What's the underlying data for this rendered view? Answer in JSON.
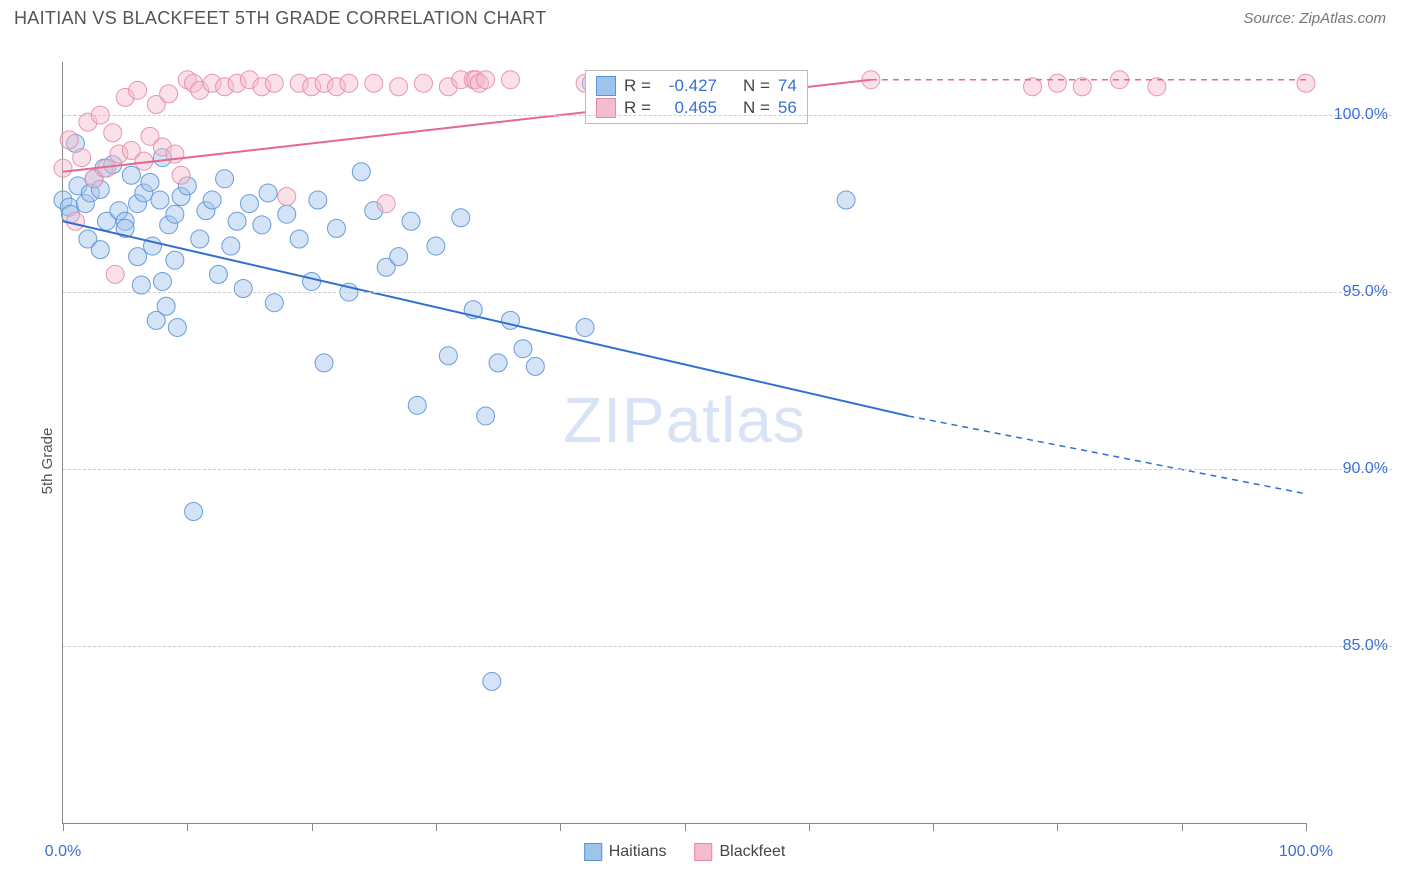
{
  "header": {
    "title": "HAITIAN VS BLACKFEET 5TH GRADE CORRELATION CHART",
    "source": "Source: ZipAtlas.com"
  },
  "chart": {
    "type": "scatter",
    "y_axis_label": "5th Grade",
    "xlim": [
      0,
      100
    ],
    "ylim": [
      80,
      101.5
    ],
    "x_ticks": [
      0,
      10,
      20,
      30,
      40,
      50,
      60,
      70,
      80,
      90,
      100
    ],
    "x_tick_labels": {
      "0": "0.0%",
      "100": "100.0%"
    },
    "y_ticks": [
      85,
      90,
      95,
      100
    ],
    "y_tick_labels": {
      "85": "85.0%",
      "90": "90.0%",
      "95": "95.0%",
      "100": "100.0%"
    },
    "background_color": "#ffffff",
    "grid_color": "#cccccc",
    "axis_color": "#888888",
    "tick_label_color": "#3b6fd4",
    "tick_label_fontsize": 16,
    "axis_label_fontsize": 15,
    "marker_radius": 9,
    "marker_opacity": 0.45,
    "marker_stroke_opacity": 0.9,
    "line_width": 2,
    "series": [
      {
        "name": "Haitians",
        "color_fill": "#9fc4ec",
        "color_stroke": "#5a94d8",
        "line_color": "#2f6fd0",
        "points": [
          [
            0,
            97.6
          ],
          [
            0.5,
            97.4
          ],
          [
            0.6,
            97.2
          ],
          [
            1,
            99.2
          ],
          [
            1.2,
            98.0
          ],
          [
            1.8,
            97.5
          ],
          [
            2,
            96.5
          ],
          [
            2.2,
            97.8
          ],
          [
            2.5,
            98.2
          ],
          [
            3,
            97.9
          ],
          [
            3,
            96.2
          ],
          [
            3.3,
            98.5
          ],
          [
            3.5,
            97.0
          ],
          [
            4,
            98.6
          ],
          [
            4.5,
            97.3
          ],
          [
            5,
            97.0
          ],
          [
            5,
            96.8
          ],
          [
            5.5,
            98.3
          ],
          [
            6,
            97.5
          ],
          [
            6,
            96.0
          ],
          [
            6.3,
            95.2
          ],
          [
            6.5,
            97.8
          ],
          [
            7,
            98.1
          ],
          [
            7.2,
            96.3
          ],
          [
            7.5,
            94.2
          ],
          [
            7.8,
            97.6
          ],
          [
            8,
            98.8
          ],
          [
            8,
            95.3
          ],
          [
            8.3,
            94.6
          ],
          [
            8.5,
            96.9
          ],
          [
            9,
            97.2
          ],
          [
            9,
            95.9
          ],
          [
            9.2,
            94.0
          ],
          [
            9.5,
            97.7
          ],
          [
            10,
            98.0
          ],
          [
            10.5,
            88.8
          ],
          [
            11,
            96.5
          ],
          [
            11.5,
            97.3
          ],
          [
            12,
            97.6
          ],
          [
            12.5,
            95.5
          ],
          [
            13,
            98.2
          ],
          [
            13.5,
            96.3
          ],
          [
            14,
            97.0
          ],
          [
            14.5,
            95.1
          ],
          [
            15,
            97.5
          ],
          [
            16,
            96.9
          ],
          [
            16.5,
            97.8
          ],
          [
            17,
            94.7
          ],
          [
            18,
            97.2
          ],
          [
            19,
            96.5
          ],
          [
            20,
            95.3
          ],
          [
            20.5,
            97.6
          ],
          [
            21,
            93.0
          ],
          [
            22,
            96.8
          ],
          [
            23,
            95.0
          ],
          [
            24,
            98.4
          ],
          [
            25,
            97.3
          ],
          [
            26,
            95.7
          ],
          [
            27,
            96.0
          ],
          [
            28,
            97.0
          ],
          [
            28.5,
            91.8
          ],
          [
            30,
            96.3
          ],
          [
            31,
            93.2
          ],
          [
            32,
            97.1
          ],
          [
            33,
            94.5
          ],
          [
            34,
            91.5
          ],
          [
            34.5,
            84.0
          ],
          [
            35,
            93.0
          ],
          [
            36,
            94.2
          ],
          [
            37,
            93.4
          ],
          [
            38,
            92.9
          ],
          [
            42,
            94.0
          ],
          [
            42.5,
            100.9
          ],
          [
            63,
            97.6
          ]
        ],
        "regression": {
          "x0": 0,
          "y0": 97.0,
          "x1": 68,
          "y1": 91.5,
          "x2": 100,
          "y2": 89.3,
          "dashed_from": 68
        }
      },
      {
        "name": "Blackfeet",
        "color_fill": "#f4bccd",
        "color_stroke": "#e789a9",
        "line_color": "#e56894",
        "points": [
          [
            0,
            98.5
          ],
          [
            0.5,
            99.3
          ],
          [
            1,
            97.0
          ],
          [
            1.5,
            98.8
          ],
          [
            2,
            99.8
          ],
          [
            2.5,
            98.2
          ],
          [
            3,
            100.0
          ],
          [
            3.5,
            98.5
          ],
          [
            4,
            99.5
          ],
          [
            4.2,
            95.5
          ],
          [
            4.5,
            98.9
          ],
          [
            5,
            100.5
          ],
          [
            5.5,
            99.0
          ],
          [
            6,
            100.7
          ],
          [
            6.5,
            98.7
          ],
          [
            7,
            99.4
          ],
          [
            7.5,
            100.3
          ],
          [
            8,
            99.1
          ],
          [
            8.5,
            100.6
          ],
          [
            9,
            98.9
          ],
          [
            9.5,
            98.3
          ],
          [
            10,
            101.0
          ],
          [
            10.5,
            100.9
          ],
          [
            11,
            100.7
          ],
          [
            12,
            100.9
          ],
          [
            13,
            100.8
          ],
          [
            14,
            100.9
          ],
          [
            15,
            101.0
          ],
          [
            16,
            100.8
          ],
          [
            17,
            100.9
          ],
          [
            18,
            97.7
          ],
          [
            19,
            100.9
          ],
          [
            20,
            100.8
          ],
          [
            21,
            100.9
          ],
          [
            22,
            100.8
          ],
          [
            23,
            100.9
          ],
          [
            25,
            100.9
          ],
          [
            26,
            97.5
          ],
          [
            27,
            100.8
          ],
          [
            29,
            100.9
          ],
          [
            31,
            100.8
          ],
          [
            32,
            101.0
          ],
          [
            33,
            101.0
          ],
          [
            33.2,
            101.0
          ],
          [
            33.5,
            100.9
          ],
          [
            34,
            101.0
          ],
          [
            36,
            101.0
          ],
          [
            42,
            100.9
          ],
          [
            50,
            100.8
          ],
          [
            65,
            101.0
          ],
          [
            78,
            100.8
          ],
          [
            80,
            100.9
          ],
          [
            82,
            100.8
          ],
          [
            85,
            101.0
          ],
          [
            88,
            100.8
          ],
          [
            100,
            100.9
          ]
        ],
        "regression": {
          "x0": 0,
          "y0": 98.4,
          "x1": 65,
          "y1": 101.0,
          "x2": 100,
          "y2": 101.0,
          "dashed_from": 65
        }
      }
    ],
    "stats_box": {
      "left_pct": 42,
      "top_pct": 1,
      "rows": [
        {
          "swatch_fill": "#9fc4ec",
          "swatch_stroke": "#5a94d8",
          "r_label": "R =",
          "r_val": "-0.427",
          "n_label": "N =",
          "n_val": "74"
        },
        {
          "swatch_fill": "#f4bccd",
          "swatch_stroke": "#e789a9",
          "r_label": "R =",
          "r_val": " 0.465",
          "n_label": "N =",
          "n_val": "56"
        }
      ]
    },
    "legend": [
      {
        "swatch_fill": "#9fc4ec",
        "swatch_stroke": "#5a94d8",
        "label": "Haitians"
      },
      {
        "swatch_fill": "#f4bccd",
        "swatch_stroke": "#e789a9",
        "label": "Blackfeet"
      }
    ],
    "watermark": {
      "bold": "ZIP",
      "rest": "atlas",
      "color": "#d8e4f5",
      "fontsize": 64
    }
  }
}
